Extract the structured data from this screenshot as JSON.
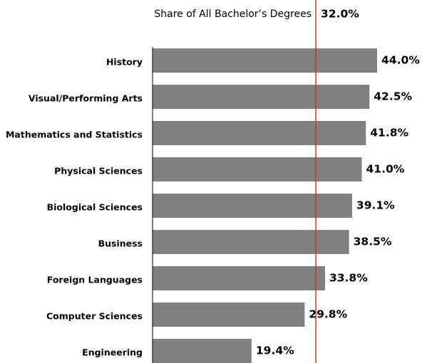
{
  "chart_data": {
    "type": "bar",
    "orientation": "horizontal",
    "categories": [
      "History",
      "Visual/Performing Arts",
      "Mathematics and Statistics",
      "Physical Sciences",
      "Biological Sciences",
      "Business",
      "Foreign Languages",
      "Computer Sciences",
      "Engineering"
    ],
    "values": [
      44.0,
      42.5,
      41.8,
      41.0,
      39.1,
      38.5,
      33.8,
      29.8,
      19.4
    ],
    "value_labels": [
      "44.0%",
      "42.5%",
      "41.8%",
      "41.0%",
      "39.1%",
      "38.5%",
      "33.8%",
      "29.8%",
      "19.4%"
    ],
    "color": "#808080",
    "reference_line": {
      "value": 32.0,
      "label": "Share of All Bachelor’s Degrees",
      "value_label": "32.0%",
      "color": "#c0392b"
    }
  }
}
